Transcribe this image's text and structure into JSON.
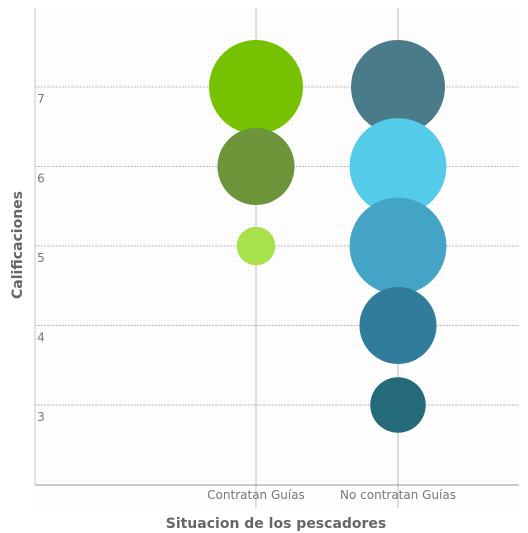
{
  "chart_data": {
    "type": "scatter",
    "xlabel": "Situacion de los pescadores",
    "ylabel": "Calificaciones",
    "categories": [
      "Contratan Guías",
      "No contratan Guías"
    ],
    "y_ticks": [
      "3",
      "4",
      "5",
      "6",
      "7"
    ],
    "ylim": [
      2,
      7.5
    ],
    "grid": true,
    "points": [
      {
        "category": "Contratan Guías",
        "y": 7,
        "relative_size": 1.0,
        "color": "#77c200"
      },
      {
        "category": "Contratan Guías",
        "y": 6,
        "relative_size": 0.82,
        "color": "#6e943a"
      },
      {
        "category": "Contratan Guías",
        "y": 5,
        "relative_size": 0.41,
        "color": "#a7e24c"
      },
      {
        "category": "No contratan Guías",
        "y": 7,
        "relative_size": 1.0,
        "color": "#4a7b89"
      },
      {
        "category": "No contratan Guías",
        "y": 6,
        "relative_size": 1.03,
        "color": "#54cbe9"
      },
      {
        "category": "No contratan Guías",
        "y": 5,
        "relative_size": 1.03,
        "color": "#43a4c6"
      },
      {
        "category": "No contratan Guías",
        "y": 4,
        "relative_size": 0.82,
        "color": "#317c9a"
      },
      {
        "category": "No contratan Guías",
        "y": 3,
        "relative_size": 0.59,
        "color": "#246a79"
      }
    ]
  }
}
